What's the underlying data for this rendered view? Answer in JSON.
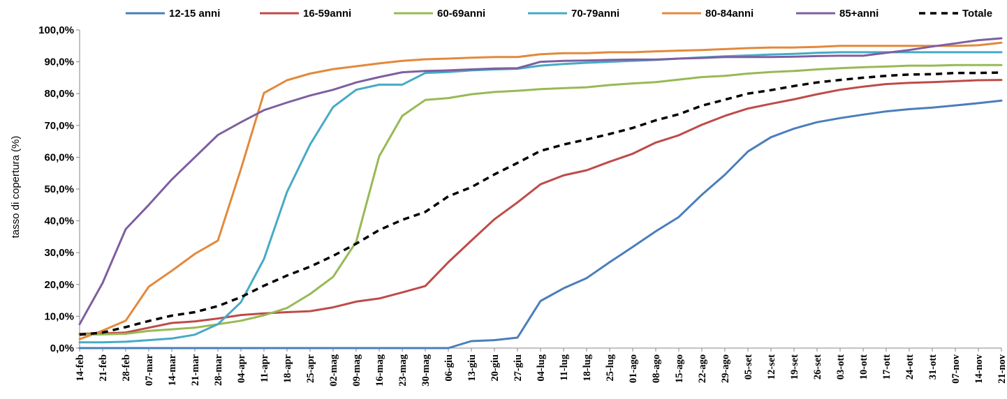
{
  "chart_data": {
    "type": "line",
    "title": "",
    "xlabel": "",
    "ylabel": "tasso di copertura (%)",
    "ylim": [
      0,
      100
    ],
    "ytick_labels": [
      "0,0%",
      "10,0%",
      "20,0%",
      "30,0%",
      "40,0%",
      "50,0%",
      "60,0%",
      "70,0%",
      "80,0%",
      "90,0%",
      "100,0%"
    ],
    "legend_position": "top",
    "grid": false,
    "categories": [
      "14-feb",
      "21-feb",
      "28-feb",
      "07-mar",
      "14-mar",
      "21-mar",
      "28-mar",
      "04-apr",
      "11-apr",
      "18-apr",
      "25-apr",
      "02-mag",
      "09-mag",
      "16-mag",
      "23-mag",
      "30-mag",
      "06-giu",
      "13-giu",
      "20-giu",
      "27-giu",
      "04-lug",
      "11-lug",
      "18-lug",
      "25-lug",
      "01-ago",
      "08-ago",
      "15-ago",
      "22-ago",
      "29-ago",
      "05-set",
      "12-set",
      "19-set",
      "26-set",
      "03-ott",
      "10-ott",
      "17-ott",
      "24-ott",
      "31-ott",
      "07-nov",
      "14-nov",
      "21-nov"
    ],
    "series": [
      {
        "name": "12-15 anni",
        "color": "#4a7ebb",
        "dashed": false,
        "values": [
          0,
          0,
          0,
          0,
          0,
          0,
          0,
          0,
          0,
          0,
          0,
          0,
          0,
          0,
          0,
          0,
          0,
          2.2,
          2.5,
          3.3,
          14.8,
          18.8,
          22,
          27,
          31.8,
          36.7,
          41.2,
          48.2,
          54.5,
          61.8,
          66.3,
          69,
          71,
          72.3,
          73.4,
          74.4,
          75.1,
          75.6,
          76.3,
          77,
          77.8
        ]
      },
      {
        "name": "16-59anni",
        "color": "#be4b48",
        "dashed": false,
        "values": [
          4.5,
          4.6,
          4.9,
          6.4,
          7.9,
          8.4,
          9.3,
          10.4,
          10.9,
          11.3,
          11.6,
          12.8,
          14.6,
          15.6,
          17.5,
          19.5,
          27,
          33.8,
          40.5,
          45.8,
          51.5,
          54.3,
          55.9,
          58.6,
          61.1,
          64.6,
          66.9,
          70.2,
          73,
          75.3,
          76.8,
          78.2,
          79.8,
          81.2,
          82.2,
          83,
          83.4,
          83.6,
          83.9,
          84.2,
          84.3
        ]
      },
      {
        "name": "60-69anni",
        "color": "#98b954",
        "dashed": false,
        "values": [
          4.2,
          4.3,
          4.5,
          5.4,
          5.9,
          6.4,
          7.5,
          8.6,
          10.3,
          12.6,
          17,
          22.4,
          33.4,
          60.3,
          73,
          78,
          78.6,
          79.8,
          80.5,
          80.9,
          81.4,
          81.7,
          82,
          82.7,
          83.2,
          83.6,
          84.4,
          85.2,
          85.6,
          86.3,
          86.8,
          87.1,
          87.6,
          88,
          88.3,
          88.5,
          88.8,
          88.8,
          89,
          89,
          89
        ]
      },
      {
        "name": "70-79anni",
        "color": "#46aac5",
        "dashed": false,
        "values": [
          1.8,
          1.8,
          2,
          2.5,
          3,
          4.2,
          7.5,
          14.4,
          28,
          49.1,
          64,
          75.8,
          81.2,
          82.8,
          82.8,
          86.5,
          86.8,
          87.3,
          87.6,
          87.8,
          88.8,
          89.3,
          89.7,
          90,
          90.3,
          90.6,
          91,
          91.4,
          91.7,
          92,
          92.3,
          92.5,
          92.8,
          93,
          93,
          93,
          93,
          93,
          93,
          93,
          93
        ]
      },
      {
        "name": "80-84anni",
        "color": "#e2893b",
        "dashed": false,
        "values": [
          2.8,
          5.5,
          8.6,
          19.3,
          24.3,
          29.6,
          33.8,
          56.3,
          80.2,
          84.2,
          86.3,
          87.7,
          88.6,
          89.5,
          90.3,
          90.8,
          91,
          91.3,
          91.5,
          91.5,
          92.4,
          92.7,
          92.7,
          93,
          93,
          93.3,
          93.5,
          93.7,
          94,
          94.3,
          94.5,
          94.5,
          94.7,
          95,
          95,
          95,
          95,
          95,
          95,
          95.2,
          96
        ]
      },
      {
        "name": "85+anni",
        "color": "#7d5fa0",
        "dashed": false,
        "values": [
          7.5,
          20.5,
          37.4,
          45,
          53,
          60,
          67,
          71,
          74.8,
          77.2,
          79.4,
          81.2,
          83.5,
          85.2,
          86.7,
          87.1,
          87.3,
          87.6,
          87.9,
          88,
          90,
          90.3,
          90.4,
          90.6,
          90.7,
          90.7,
          91,
          91.2,
          91.5,
          91.5,
          91.5,
          91.6,
          91.8,
          91.9,
          91.9,
          92.8,
          93.7,
          94.8,
          95.8,
          96.8,
          97.4
        ]
      },
      {
        "name": "Totale",
        "color": "#000000",
        "dashed": true,
        "values": [
          4.2,
          4.9,
          6.6,
          8.5,
          10.2,
          11.3,
          13.2,
          16,
          19.6,
          22.8,
          25.6,
          29,
          32.8,
          37.1,
          40.3,
          42.8,
          47.7,
          50.6,
          54.6,
          58.2,
          62,
          64,
          65.6,
          67.3,
          69.2,
          71.6,
          73.5,
          76.2,
          78.1,
          80,
          81.1,
          82.4,
          83.5,
          84.3,
          85,
          85.6,
          86,
          86.1,
          86.5,
          86.5,
          86.6
        ]
      }
    ]
  }
}
